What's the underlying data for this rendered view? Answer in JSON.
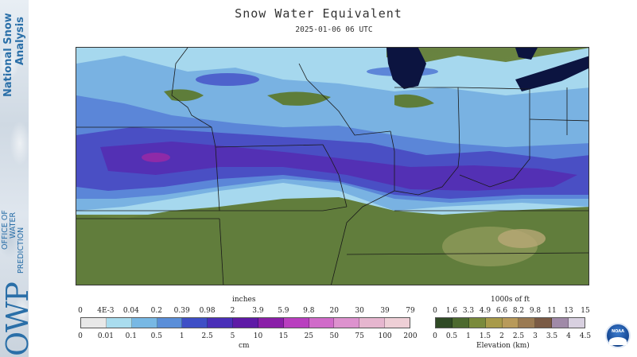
{
  "branding": {
    "nsa_line1": "National Snow",
    "nsa_line2": "Analysis",
    "office_lines": [
      "OFFICE OF",
      "WATER",
      "PREDICTION"
    ],
    "owp": "OWP",
    "noaa": "NOAA"
  },
  "header": {
    "title": "Snow Water Equivalent",
    "timestamp": "2025-01-06 06 UTC"
  },
  "swe_legend": {
    "top_unit": "inches",
    "bottom_unit": "cm",
    "inch_ticks": [
      "0",
      "4E-3",
      "0.04",
      "0.2",
      "0.39",
      "0.98",
      "2",
      "3.9",
      "5.9",
      "9.8",
      "20",
      "30",
      "39",
      "79"
    ],
    "cm_ticks": [
      "0",
      "0.01",
      "0.1",
      "0.5",
      "1",
      "2.5",
      "5",
      "10",
      "15",
      "25",
      "50",
      "75",
      "100",
      "200"
    ],
    "colors": [
      "#e8e8e8",
      "#a9dcee",
      "#78b8e4",
      "#5a8ed8",
      "#3e4fc6",
      "#4a2fb8",
      "#5e1aa6",
      "#8a1fa8",
      "#b93fbf",
      "#d06bc9",
      "#dd92ce",
      "#e6b6cf",
      "#eecfd6"
    ]
  },
  "elev_legend": {
    "top_unit": "1000s of ft",
    "bottom_unit": "Elevation (km)",
    "ft_ticks": [
      "0",
      "1.6",
      "3.3",
      "4.9",
      "6.6",
      "8.2",
      "9.8",
      "11",
      "13",
      "15"
    ],
    "km_ticks": [
      "0",
      "0.5",
      "1",
      "1.5",
      "2",
      "2.5",
      "3",
      "3.5",
      "4",
      "4.5"
    ],
    "colors": [
      "#2f4a25",
      "#4d6a2f",
      "#7a8a3c",
      "#a89a4a",
      "#b89a5a",
      "#9a7a52",
      "#7a5a44",
      "#a08aa8",
      "#d8d0e0"
    ]
  }
}
